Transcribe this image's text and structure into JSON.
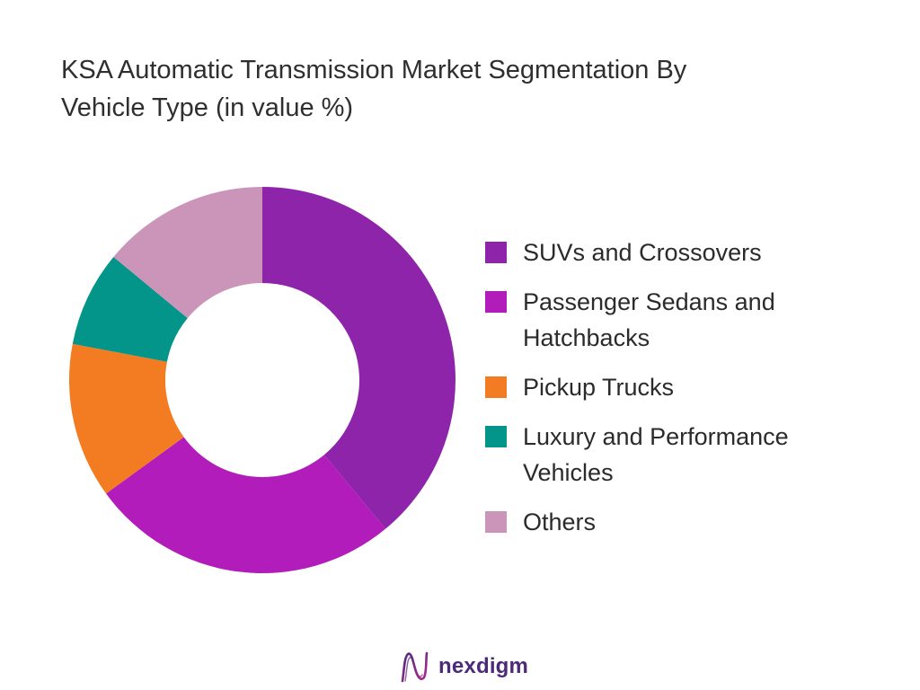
{
  "chart_data": {
    "type": "pie",
    "donut": true,
    "title": "KSA Automatic Transmission Market Segmentation By Vehicle Type (in value %)",
    "categories": [
      "SUVs and Crossovers",
      "Passenger Sedans and Hatchbacks",
      "Pickup Trucks",
      "Luxury and Performance Vehicles",
      "Others"
    ],
    "values": [
      39,
      26,
      13,
      8,
      14
    ],
    "unit": "%",
    "colors": [
      "#8e24aa",
      "#b11cbb",
      "#f37b21",
      "#03958a",
      "#cb95ba"
    ],
    "legend_position": "right"
  },
  "logo": {
    "text": "nexdigm",
    "icon": "nexdigm-wave-logo-icon",
    "colors": [
      "#4b2a7b",
      "#b0298f"
    ]
  }
}
